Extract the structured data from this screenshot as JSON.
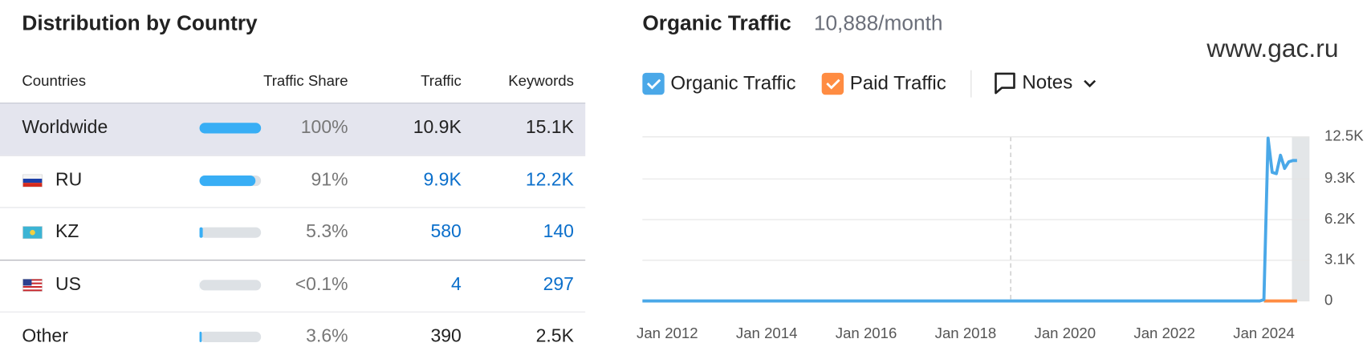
{
  "table": {
    "title": "Distribution by Country",
    "columns": [
      "Countries",
      "Traffic Share",
      "Traffic",
      "Keywords"
    ],
    "rows": [
      {
        "country": "Worldwide",
        "share": 100,
        "share_label": "100%",
        "traffic": "10.9K",
        "keywords": "15.1K"
      },
      {
        "country": "RU",
        "share": 91,
        "share_label": "91%",
        "traffic": "9.9K",
        "keywords": "12.2K"
      },
      {
        "country": "KZ",
        "share": 5.3,
        "share_label": "5.3%",
        "traffic": "580",
        "keywords": "140"
      },
      {
        "country": "US",
        "share": 0.05,
        "share_label": "<0.1%",
        "traffic": "4",
        "keywords": "297"
      },
      {
        "country": "Other",
        "share": 3.6,
        "share_label": "3.6%",
        "traffic": "390",
        "keywords": "2.5K"
      }
    ]
  },
  "watermark": "www.gac.ru",
  "chart_data": {
    "type": "line",
    "title": "Organic Traffic",
    "subtitle": "10,888/month",
    "notes_label": "Notes",
    "x": [
      "2011-07",
      "2023-12",
      "2024-01",
      "2024-02",
      "2024-03",
      "2024-04",
      "2024-05",
      "2024-06",
      "2024-07",
      "2024-08",
      "2024-09"
    ],
    "series": [
      {
        "name": "Organic Traffic",
        "color": "#4aa8e8",
        "values": [
          0,
          0,
          100,
          12400,
          9800,
          9700,
          11100,
          10100,
          10600,
          10700,
          10700
        ]
      },
      {
        "name": "Paid Traffic",
        "color": "#ff8c42",
        "values": [
          null,
          null,
          0,
          0,
          0,
          0,
          0,
          0,
          0,
          0,
          0
        ]
      }
    ],
    "xlim": [
      "2011-07",
      "2024-12"
    ],
    "xticks": [
      {
        "value": "2012-01",
        "label": "Jan 2012"
      },
      {
        "value": "2014-01",
        "label": "Jan 2014"
      },
      {
        "value": "2016-01",
        "label": "Jan 2016"
      },
      {
        "value": "2018-01",
        "label": "Jan 2018"
      },
      {
        "value": "2020-01",
        "label": "Jan 2020"
      },
      {
        "value": "2022-01",
        "label": "Jan 2022"
      },
      {
        "value": "2024-01",
        "label": "Jan 2024"
      }
    ],
    "ylim": [
      0,
      12500
    ],
    "yticks": [
      0,
      {
        "value": 3100,
        "label": "3.1K"
      },
      {
        "value": 6200,
        "label": "6.2K"
      },
      {
        "value": 9300,
        "label": "9.3K"
      },
      {
        "value": 12500,
        "label": "12.5K"
      }
    ],
    "grid": true
  }
}
